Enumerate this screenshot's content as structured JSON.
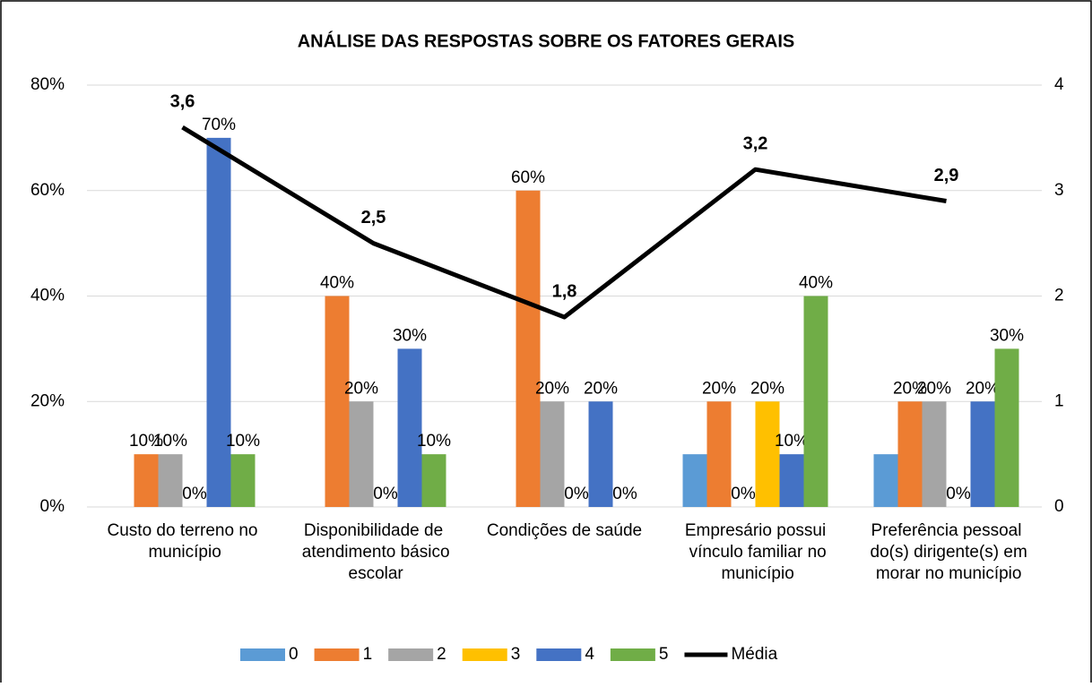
{
  "chart_data": {
    "type": "bar",
    "title": "ANÁLISE DAS RESPOSTAS SOBRE OS FATORES GERAIS",
    "categories": [
      "Custo do terreno no município",
      "Disponibilidade de atendimento básico escolar",
      "Condições de saúde",
      "Empresário possui vínculo familiar no município",
      "Preferência pessoal do(s) dirigente(s) em morar no município"
    ],
    "series": [
      {
        "name": "0",
        "color": "#5b9bd5",
        "values": [
          0,
          0,
          0,
          10,
          10
        ],
        "value_labels": [
          null,
          null,
          null,
          null,
          null
        ]
      },
      {
        "name": "1",
        "color": "#ed7d31",
        "values": [
          10,
          40,
          60,
          20,
          20
        ],
        "value_labels": [
          "10%",
          "40%",
          "60%",
          "20%",
          "20%"
        ]
      },
      {
        "name": "2",
        "color": "#a5a5a5",
        "values": [
          10,
          20,
          20,
          0,
          20
        ],
        "value_labels": [
          "10%",
          "20%",
          "20%",
          "0%",
          "20%"
        ]
      },
      {
        "name": "3",
        "color": "#ffc000",
        "values": [
          0,
          0,
          0,
          20,
          0
        ],
        "value_labels": [
          "0%",
          "0%",
          "0%",
          "20%",
          "0%"
        ]
      },
      {
        "name": "4",
        "color": "#4472c4",
        "values": [
          70,
          30,
          20,
          10,
          20
        ],
        "value_labels": [
          "70%",
          "30%",
          "20%",
          "10%",
          "20%"
        ]
      },
      {
        "name": "5",
        "color": "#70ad47",
        "values": [
          10,
          10,
          0,
          40,
          30
        ],
        "value_labels": [
          "10%",
          "10%",
          "0%",
          "40%",
          "30%"
        ]
      },
      {
        "name": "Média",
        "type": "line",
        "color": "#000000",
        "axis": "y2",
        "values": [
          3.6,
          2.5,
          1.8,
          3.2,
          2.9
        ],
        "value_labels": [
          "3,6",
          "2,5",
          "1,8",
          "3,2",
          "2,9"
        ]
      }
    ],
    "ylim": [
      0,
      80
    ],
    "yticks": [
      {
        "value": 0,
        "label": "0%"
      },
      {
        "value": 20,
        "label": "20%"
      },
      {
        "value": 40,
        "label": "40%"
      },
      {
        "value": 60,
        "label": "60%"
      },
      {
        "value": 80,
        "label": "80%"
      }
    ],
    "y2lim": [
      0,
      4
    ],
    "y2ticks": [
      0,
      1,
      2,
      3,
      4
    ],
    "grid": true,
    "legend": "bottom"
  }
}
